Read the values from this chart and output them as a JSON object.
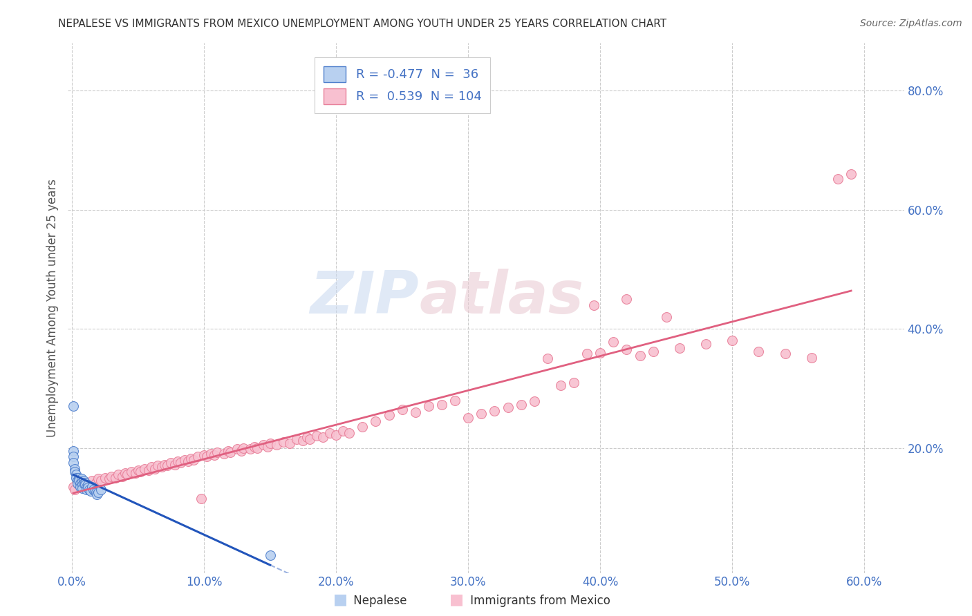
{
  "title": "NEPALESE VS IMMIGRANTS FROM MEXICO UNEMPLOYMENT AMONG YOUTH UNDER 25 YEARS CORRELATION CHART",
  "source": "Source: ZipAtlas.com",
  "ylabel": "Unemployment Among Youth under 25 years",
  "xlim": [
    -0.003,
    0.63
  ],
  "ylim": [
    -0.01,
    0.88
  ],
  "xticks": [
    0.0,
    0.1,
    0.2,
    0.3,
    0.4,
    0.5,
    0.6
  ],
  "xticklabels": [
    "0.0%",
    "10.0%",
    "20.0%",
    "30.0%",
    "40.0%",
    "50.0%",
    "60.0%"
  ],
  "yticks_right": [
    0.2,
    0.4,
    0.6,
    0.8
  ],
  "yticklabels_right": [
    "20.0%",
    "40.0%",
    "60.0%",
    "80.0%"
  ],
  "legend_r_nepalese": "-0.477",
  "legend_n_nepalese": " 36",
  "legend_r_mexico": " 0.539",
  "legend_n_mexico": "104",
  "nepalese_color": "#b8d0f0",
  "nepalese_edge_color": "#4f7fcc",
  "nepalese_line_color": "#2255bb",
  "mexico_color": "#f8c0d0",
  "mexico_edge_color": "#e8809a",
  "mexico_line_color": "#e06080",
  "watermark_zip": "ZIP",
  "watermark_atlas": "atlas",
  "background_color": "#ffffff",
  "grid_color": "#cccccc",
  "tick_color": "#4472c4",
  "title_color": "#333333",
  "nepalese_x": [
    0.001,
    0.001,
    0.001,
    0.002,
    0.002,
    0.003,
    0.003,
    0.004,
    0.004,
    0.005,
    0.005,
    0.006,
    0.006,
    0.007,
    0.007,
    0.008,
    0.008,
    0.009,
    0.009,
    0.01,
    0.01,
    0.011,
    0.011,
    0.012,
    0.012,
    0.013,
    0.014,
    0.015,
    0.016,
    0.017,
    0.018,
    0.019,
    0.02,
    0.022,
    0.15,
    0.001
  ],
  "nepalese_y": [
    0.195,
    0.185,
    0.175,
    0.165,
    0.16,
    0.155,
    0.15,
    0.145,
    0.14,
    0.15,
    0.145,
    0.14,
    0.135,
    0.148,
    0.142,
    0.138,
    0.132,
    0.145,
    0.14,
    0.142,
    0.138,
    0.135,
    0.13,
    0.138,
    0.133,
    0.13,
    0.128,
    0.135,
    0.13,
    0.128,
    0.125,
    0.122,
    0.125,
    0.13,
    0.02,
    0.27
  ],
  "mexico_x": [
    0.001,
    0.002,
    0.005,
    0.008,
    0.01,
    0.012,
    0.015,
    0.018,
    0.02,
    0.022,
    0.025,
    0.028,
    0.03,
    0.033,
    0.035,
    0.038,
    0.04,
    0.042,
    0.045,
    0.048,
    0.05,
    0.052,
    0.055,
    0.058,
    0.06,
    0.063,
    0.065,
    0.068,
    0.07,
    0.072,
    0.075,
    0.078,
    0.08,
    0.082,
    0.085,
    0.088,
    0.09,
    0.092,
    0.095,
    0.098,
    0.1,
    0.102,
    0.105,
    0.108,
    0.11,
    0.115,
    0.118,
    0.12,
    0.125,
    0.128,
    0.13,
    0.135,
    0.138,
    0.14,
    0.145,
    0.148,
    0.15,
    0.155,
    0.16,
    0.165,
    0.17,
    0.175,
    0.178,
    0.18,
    0.185,
    0.19,
    0.195,
    0.2,
    0.205,
    0.21,
    0.22,
    0.23,
    0.24,
    0.25,
    0.26,
    0.27,
    0.28,
    0.29,
    0.3,
    0.31,
    0.32,
    0.33,
    0.34,
    0.35,
    0.36,
    0.37,
    0.38,
    0.39,
    0.4,
    0.41,
    0.42,
    0.43,
    0.44,
    0.46,
    0.48,
    0.5,
    0.52,
    0.54,
    0.56,
    0.58,
    0.395,
    0.42,
    0.45,
    0.59
  ],
  "mexico_y": [
    0.135,
    0.13,
    0.138,
    0.142,
    0.14,
    0.138,
    0.145,
    0.142,
    0.148,
    0.145,
    0.15,
    0.148,
    0.152,
    0.15,
    0.155,
    0.152,
    0.158,
    0.155,
    0.16,
    0.158,
    0.162,
    0.16,
    0.165,
    0.162,
    0.168,
    0.165,
    0.17,
    0.168,
    0.172,
    0.17,
    0.175,
    0.172,
    0.178,
    0.175,
    0.18,
    0.178,
    0.182,
    0.18,
    0.185,
    0.115,
    0.188,
    0.185,
    0.19,
    0.188,
    0.192,
    0.19,
    0.195,
    0.192,
    0.198,
    0.195,
    0.2,
    0.198,
    0.202,
    0.2,
    0.205,
    0.202,
    0.208,
    0.205,
    0.21,
    0.208,
    0.215,
    0.212,
    0.218,
    0.215,
    0.22,
    0.218,
    0.225,
    0.222,
    0.228,
    0.225,
    0.235,
    0.245,
    0.255,
    0.265,
    0.26,
    0.27,
    0.272,
    0.28,
    0.25,
    0.258,
    0.262,
    0.268,
    0.272,
    0.278,
    0.35,
    0.305,
    0.31,
    0.358,
    0.36,
    0.378,
    0.365,
    0.355,
    0.362,
    0.368,
    0.375,
    0.38,
    0.362,
    0.358,
    0.352,
    0.652,
    0.44,
    0.45,
    0.42,
    0.66
  ]
}
